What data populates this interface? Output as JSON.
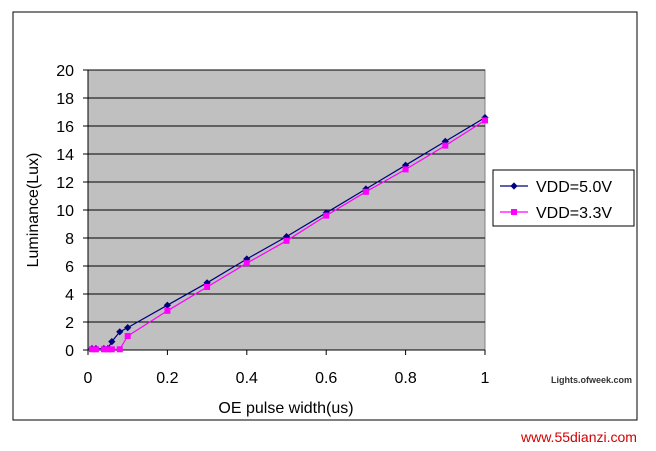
{
  "chart_data": {
    "type": "line",
    "title": "",
    "xlabel": "OE pulse width(us)",
    "ylabel": "Luminance(Lux)",
    "xlim": [
      0,
      1
    ],
    "ylim": [
      0,
      20
    ],
    "x_ticks": [
      "0",
      "0.2",
      "0.4",
      "0.6",
      "0.8",
      "1"
    ],
    "y_ticks": [
      "0",
      "2",
      "4",
      "6",
      "8",
      "10",
      "12",
      "14",
      "16",
      "18",
      "20"
    ],
    "grid": "horizontal",
    "plot_background": "#c0c0c0",
    "legend_position": "right",
    "series": [
      {
        "name": "VDD=5.0V",
        "color": "#000080",
        "marker": "diamond",
        "x": [
          0.01,
          0.02,
          0.04,
          0.05,
          0.06,
          0.08,
          0.1,
          0.2,
          0.3,
          0.4,
          0.5,
          0.6,
          0.7,
          0.8,
          0.9,
          1.0
        ],
        "y": [
          0.1,
          0.1,
          0.1,
          0.1,
          0.6,
          1.3,
          1.6,
          3.2,
          4.8,
          6.5,
          8.1,
          9.8,
          11.5,
          13.2,
          14.9,
          16.6
        ]
      },
      {
        "name": "VDD=3.3V",
        "color": "#ff00ff",
        "marker": "square",
        "x": [
          0.01,
          0.02,
          0.04,
          0.05,
          0.06,
          0.08,
          0.1,
          0.2,
          0.3,
          0.4,
          0.5,
          0.6,
          0.7,
          0.8,
          0.9,
          1.0
        ],
        "y": [
          0.05,
          0.05,
          0.05,
          0.05,
          0.05,
          0.05,
          1.0,
          2.8,
          4.5,
          6.2,
          7.8,
          9.6,
          11.3,
          12.9,
          14.6,
          16.4
        ]
      }
    ]
  },
  "watermarks": {
    "site_small": "Lights.ofweek.com",
    "site_big": "www.55dianzi.com"
  }
}
